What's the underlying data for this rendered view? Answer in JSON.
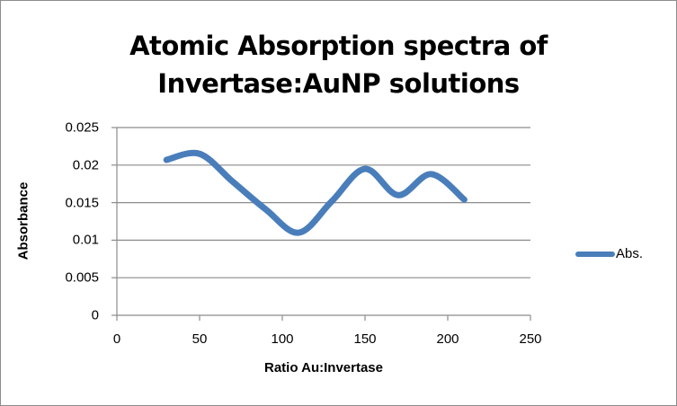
{
  "chart_data": {
    "type": "line",
    "title": "Atomic Absorption spectra of Invertase:AuNP solutions",
    "title_lines": [
      "Atomic Absorption spectra of",
      "Invertase:AuNP solutions"
    ],
    "xlabel": "Ratio Au:Invertase",
    "ylabel": "Absorbance",
    "xlim": [
      0,
      250
    ],
    "ylim": [
      0,
      0.025
    ],
    "x_ticks": [
      "0",
      "50",
      "100",
      "150",
      "200",
      "250"
    ],
    "y_ticks": [
      "0",
      "0.005",
      "0.01",
      "0.015",
      "0.02",
      "0.025"
    ],
    "grid": "horizontal major gridlines",
    "legend_position": "right",
    "smoothed": true,
    "series": [
      {
        "name": "Abs.",
        "color": "#4a7ebb",
        "x": [
          30,
          50,
          70,
          90,
          110,
          130,
          150,
          170,
          190,
          210
        ],
        "values": [
          0.0207,
          0.0215,
          0.0178,
          0.0141,
          0.011,
          0.0152,
          0.0195,
          0.016,
          0.0188,
          0.0154
        ]
      }
    ]
  }
}
